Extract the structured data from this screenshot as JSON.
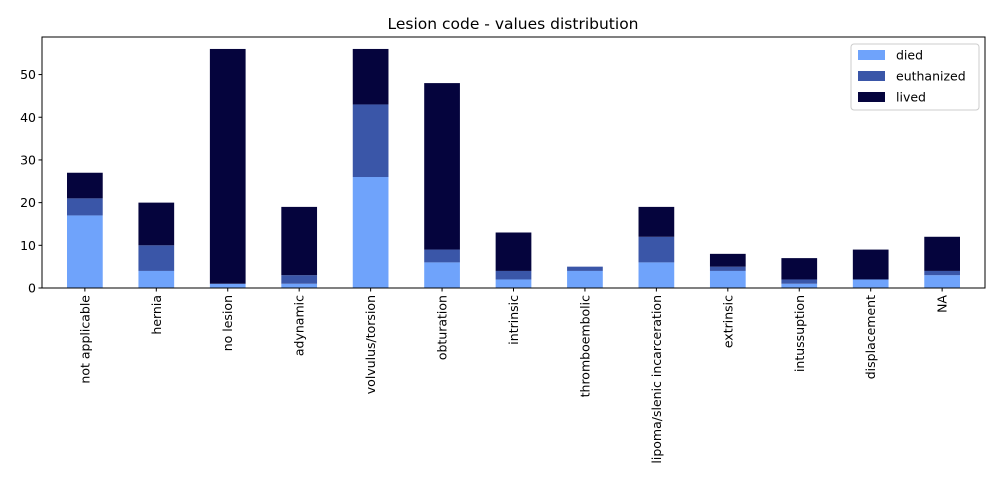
{
  "chart_data": {
    "type": "bar",
    "stacked": true,
    "title": "Lesion code - values distribution",
    "xlabel": "",
    "ylabel": "",
    "ylim": [
      0,
      58.8
    ],
    "yticks": [
      0,
      10,
      20,
      30,
      40,
      50
    ],
    "grid": false,
    "legend_position": "top-right",
    "categories": [
      "not applicable",
      "hernia",
      "no lesion",
      "adynamic",
      "volvulus/torsion",
      "obturation",
      "intrinsic",
      "thromboembolic",
      "lipoma/slenic incarceration",
      "extrinsic",
      "intussuption",
      "displacement",
      "NA"
    ],
    "series": [
      {
        "name": "died",
        "color": "#6fa3fb",
        "values": [
          17,
          4,
          1,
          1,
          26,
          6,
          2,
          4,
          6,
          4,
          1,
          2,
          3
        ]
      },
      {
        "name": "euthanized",
        "color": "#3a56a8",
        "values": [
          4,
          6,
          0,
          2,
          17,
          3,
          2,
          1,
          6,
          1,
          1,
          0,
          1
        ]
      },
      {
        "name": "lived",
        "color": "#05043d",
        "values": [
          6,
          10,
          55,
          16,
          13,
          39,
          9,
          0,
          7,
          3,
          5,
          7,
          8
        ]
      }
    ]
  }
}
